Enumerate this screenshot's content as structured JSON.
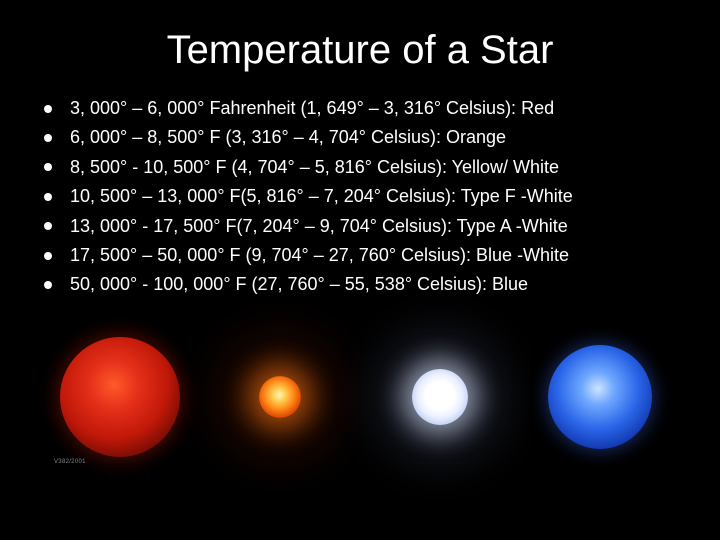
{
  "title": "Temperature of a Star",
  "bullets": [
    "3, 000° – 6, 000° Fahrenheit (1, 649° – 3, 316° Celsius): Red",
    "6, 000° – 8, 500° F (3, 316° – 4, 704° Celsius): Orange",
    "8, 500° - 10, 500° F (4, 704° – 5, 816° Celsius): Yellow/ White",
    "10, 500° – 13, 000° F(5, 816° – 7, 204° Celsius): Type F -White",
    "13, 000° - 17, 500° F(7, 204° – 9, 704° Celsius): Type A  -White",
    "17, 500° – 50, 000° F (9, 704° – 27, 760° Celsius): Blue -White",
    "50, 000° - 100, 000° F (27, 760° – 55, 538° Celsius):  Blue"
  ],
  "stars": {
    "red_caption": "V382/2001"
  },
  "colors": {
    "background": "#000000",
    "text": "#ffffff",
    "bullet": "#ffffff"
  }
}
